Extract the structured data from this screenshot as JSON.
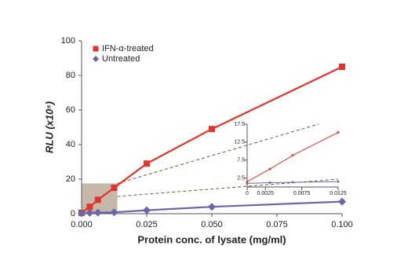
{
  "chart_data": [
    {
      "type": "line",
      "x_label": "Protein conc. of lysate (mg/ml)",
      "y_label": "RLU (x10⁵)",
      "xlim": [
        0,
        0.1
      ],
      "xticks": [
        {
          "value": 0,
          "label": "0.000"
        },
        {
          "value": 0.025,
          "label": "0.025"
        },
        {
          "value": 0.05,
          "label": "0.050"
        },
        {
          "value": 0.075,
          "label": "0.075"
        },
        {
          "value": 0.1,
          "label": "0.100"
        }
      ],
      "ylim": [
        0,
        100
      ],
      "yticks": [
        0,
        20,
        40,
        60,
        80,
        100
      ],
      "legend": "top-left",
      "series": [
        {
          "name": "IFN-α-treated",
          "color": "#e4332b",
          "marker": "square",
          "x": [
            0,
            0.003125,
            0.00625,
            0.0125,
            0.025,
            0.05,
            0.1
          ],
          "values": [
            0.5,
            4,
            8,
            15,
            29,
            49,
            85
          ]
        },
        {
          "name": "Untreated",
          "color": "#6b66aa",
          "marker": "diamond",
          "x": [
            0,
            0.003125,
            0.00625,
            0.0125,
            0.025,
            0.05,
            0.1
          ],
          "values": [
            0.3,
            0.5,
            0.6,
            0.8,
            2,
            4,
            7
          ]
        }
      ]
    },
    {
      "type": "line",
      "xlim": [
        0,
        0.0125
      ],
      "xticks": [
        0,
        0.0025,
        0.0075,
        0.0125
      ],
      "ylim": [
        0,
        17.5
      ],
      "yticks": [
        2.5,
        7.5,
        12.5,
        17.5
      ],
      "series": [
        {
          "color": "#e4332b",
          "x": [
            0,
            0.003125,
            0.00625,
            0.0125
          ],
          "values": [
            1.5,
            5,
            8.8,
            15.2
          ]
        },
        {
          "color": "#6b66aa",
          "x": [
            0,
            0.003125,
            0.00625,
            0.0125
          ],
          "values": [
            1,
            1.2,
            1.3,
            1.5
          ]
        }
      ]
    }
  ]
}
